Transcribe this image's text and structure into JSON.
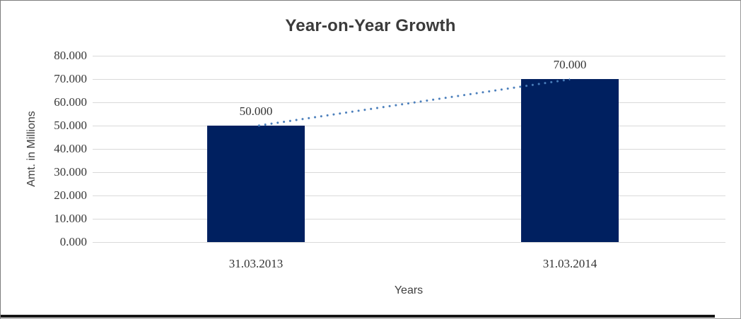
{
  "chart_data": {
    "type": "bar",
    "title": "Year-on-Year Growth",
    "categories": [
      "31.03.2013",
      "31.03.2014"
    ],
    "values": [
      50,
      70
    ],
    "data_labels": [
      "50.000",
      "70.000"
    ],
    "xlabel": "Years",
    "ylabel": "Amt. in Millions",
    "ylim": [
      0,
      80
    ],
    "y_tick_step": 10,
    "y_ticks": [
      "80.000",
      "70.000",
      "60.000",
      "50.000",
      "40.000",
      "30.000",
      "20.000",
      "10.000",
      "0.000"
    ],
    "grid": "horizontal",
    "legend": "none",
    "bar_color": "#002060",
    "gridline_color": "#d9d9d9",
    "title_color": "#3b3b3b",
    "trendline": {
      "style": "dotted",
      "color": "#4a7ebb",
      "from": 50,
      "to": 70
    }
  }
}
